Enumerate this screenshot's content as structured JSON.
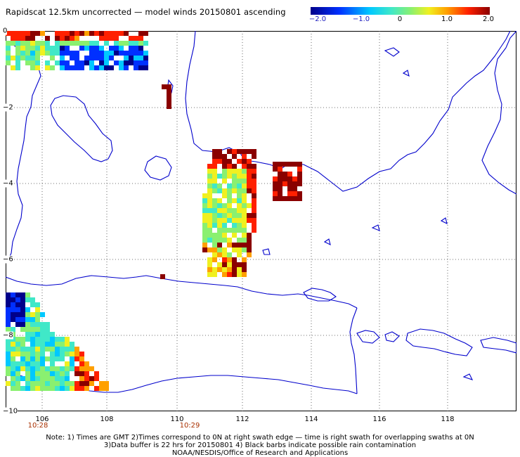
{
  "title": "Rapidscat 12.5km uncorrected — model winds 20150801 ascending",
  "colorbar": {
    "ticks": [
      "−2.0",
      "−1.0",
      "0",
      "1.0",
      "2.0"
    ],
    "range": [
      -2.0,
      2.0
    ],
    "colors": [
      "#00008a",
      "#0030ff",
      "#00c8ff",
      "#40e8c8",
      "#8af070",
      "#f0f020",
      "#ffa000",
      "#ff2000",
      "#8a0000"
    ]
  },
  "axes": {
    "x_ticks": [
      "106",
      "108",
      "110",
      "112",
      "114",
      "116",
      "118"
    ],
    "y_ticks": [
      "0",
      "−2",
      "−4",
      "−6",
      "−8",
      "−10"
    ],
    "x_range": [
      105,
      120
    ],
    "y_range": [
      -10,
      0
    ],
    "grid": true
  },
  "swath_times": [
    "10:28",
    "10:29"
  ],
  "notes": [
    "Note: 1) Times are GMT 2)Times correspond to 0N at right swath edge — time is right swath for overlapping swaths at 0N",
    "3)Data buffer is 22 hrs for 20150801 4) Black barbs indicate possible rain contamination",
    "NOAA/NESDIS/Office of Research and Applications"
  ]
}
